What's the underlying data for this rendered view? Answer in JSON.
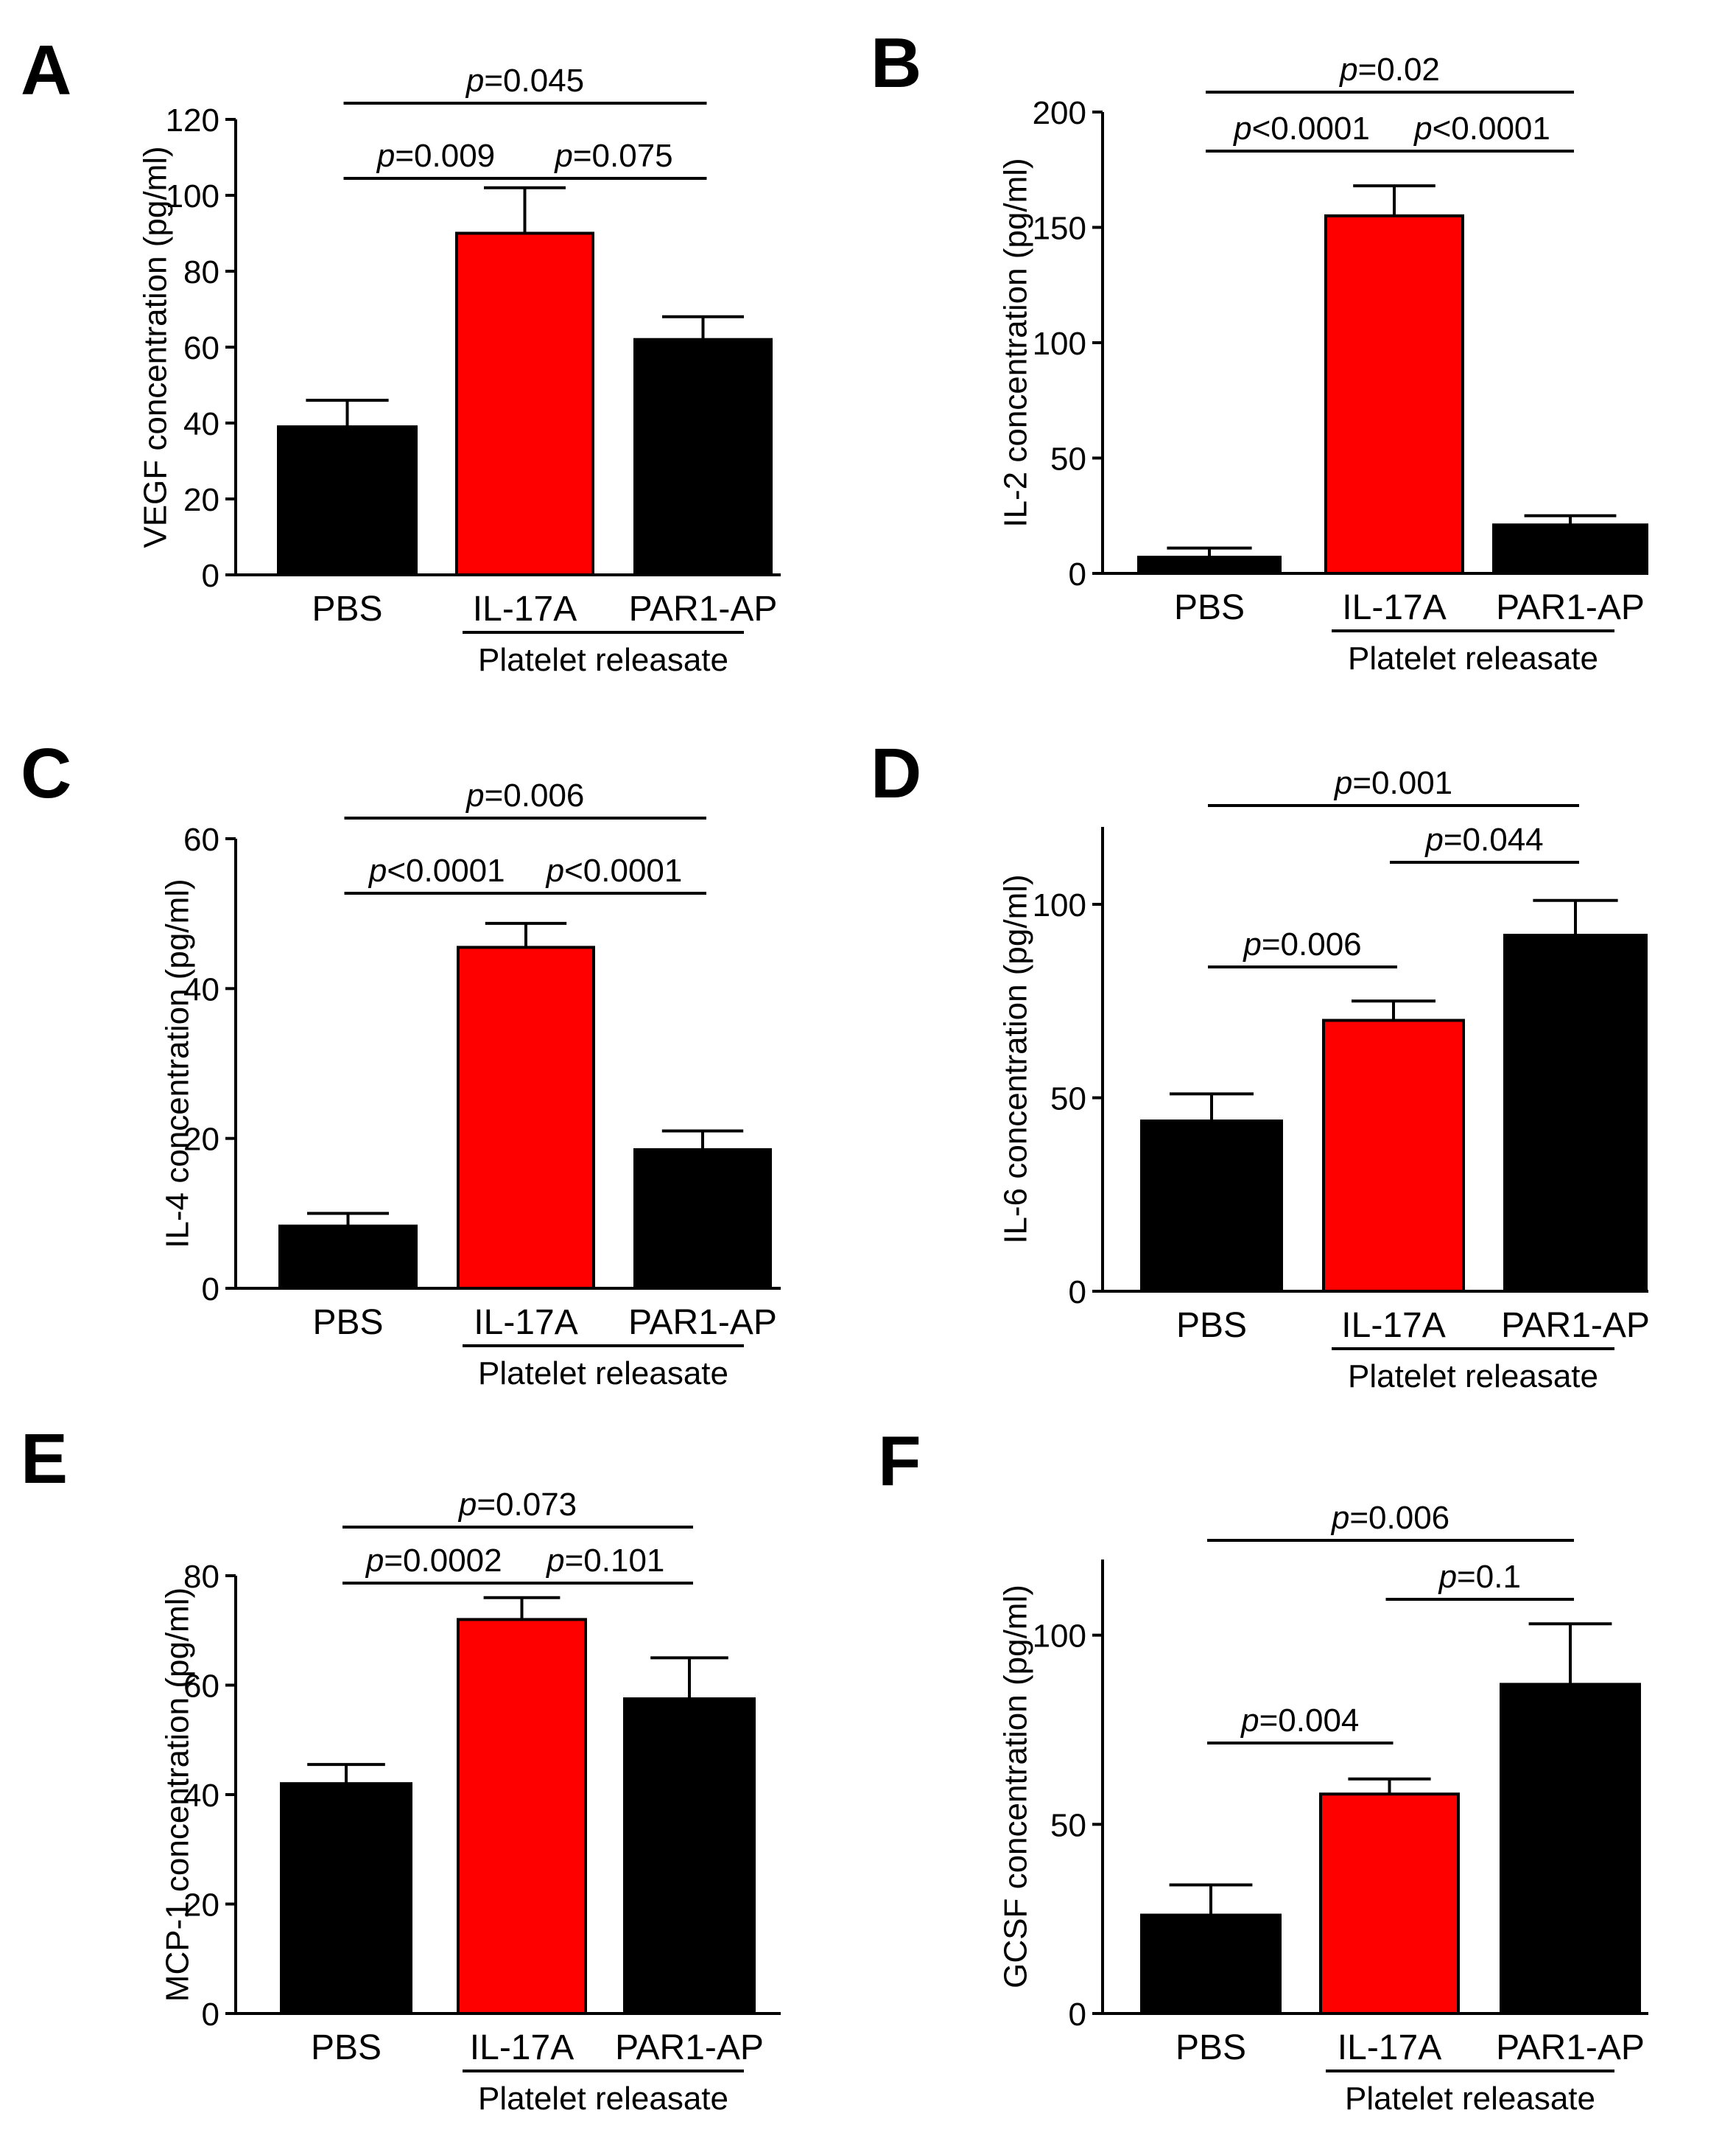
{
  "figure": {
    "group_label": "Platelet releasate"
  },
  "chart_data": [
    {
      "panel": "A",
      "type": "bar",
      "categories": [
        "PBS",
        "IL-17A",
        "PAR1-AP"
      ],
      "values": [
        39,
        90,
        62
      ],
      "errors": [
        7,
        12,
        6
      ],
      "colors": [
        "#000000",
        "#ff0000",
        "#000000"
      ],
      "ylabel": "VEGF concentration (pg/ml)",
      "ylim": [
        0,
        120
      ],
      "yticks": [
        0,
        20,
        40,
        60,
        80,
        100,
        120
      ],
      "group_label": "Platelet releasate",
      "comparisons": [
        {
          "from": 0,
          "to": 2,
          "italic": "p",
          "rest": "=0.045",
          "level": 2
        },
        {
          "from": 0,
          "to": 1,
          "italic": "p",
          "rest": "=0.009",
          "level": 1
        },
        {
          "from": 1,
          "to": 2,
          "italic": "p",
          "rest": "=0.075",
          "level": 1
        }
      ]
    },
    {
      "panel": "B",
      "type": "bar",
      "categories": [
        "PBS",
        "IL-17A",
        "PAR1-AP"
      ],
      "values": [
        7,
        155,
        21
      ],
      "errors": [
        4,
        13,
        4
      ],
      "colors": [
        "#000000",
        "#ff0000",
        "#000000"
      ],
      "ylabel": "IL-2 concentration (pg/ml)",
      "ylim": [
        0,
        200
      ],
      "yticks": [
        0,
        50,
        100,
        150,
        200
      ],
      "group_label": "Platelet releasate",
      "comparisons": [
        {
          "from": 0,
          "to": 2,
          "italic": "p",
          "rest": "=0.02",
          "level": 2
        },
        {
          "from": 0,
          "to": 1,
          "italic": "p",
          "rest": "<0.0001",
          "level": 1
        },
        {
          "from": 1,
          "to": 2,
          "italic": "p",
          "rest": "<0.0001",
          "level": 1
        }
      ]
    },
    {
      "panel": "C",
      "type": "bar",
      "categories": [
        "PBS",
        "IL-17A",
        "PAR1-AP"
      ],
      "values": [
        8.3,
        45.5,
        18.5
      ],
      "errors": [
        1.7,
        3.2,
        2.5
      ],
      "colors": [
        "#000000",
        "#ff0000",
        "#000000"
      ],
      "ylabel": "IL-4 concentration (pg/ml)",
      "ylim": [
        0,
        60
      ],
      "yticks": [
        0,
        20,
        40,
        60
      ],
      "group_label": "Platelet releasate",
      "comparisons": [
        {
          "from": 0,
          "to": 2,
          "italic": "p",
          "rest": "=0.006",
          "level": 2
        },
        {
          "from": 0,
          "to": 1,
          "italic": "p",
          "rest": "<0.0001",
          "level": 1
        },
        {
          "from": 1,
          "to": 2,
          "italic": "p",
          "rest": "<0.0001",
          "level": 1
        }
      ]
    },
    {
      "panel": "D",
      "type": "bar",
      "categories": [
        "PBS",
        "IL-17A",
        "PAR1-AP"
      ],
      "values": [
        44,
        70,
        92
      ],
      "errors": [
        7,
        5,
        9
      ],
      "colors": [
        "#000000",
        "#ff0000",
        "#000000"
      ],
      "ylabel": "IL-6 concentration (pg/ml)",
      "ylim": [
        0,
        120
      ],
      "yticks": [
        0,
        50,
        100
      ],
      "group_label": "Platelet releasate",
      "comparisons": [
        {
          "from": 0,
          "to": 2,
          "italic": "p",
          "rest": "=0.001",
          "level": 2
        },
        {
          "from": 1,
          "to": 2,
          "italic": "p",
          "rest": "=0.044",
          "level": 1
        },
        {
          "from": 0,
          "to": 1,
          "italic": "p",
          "rest": "=0.006",
          "level": 0
        }
      ]
    },
    {
      "panel": "E",
      "type": "bar",
      "categories": [
        "PBS",
        "IL-17A",
        "PAR1-AP"
      ],
      "values": [
        42,
        72,
        57.5
      ],
      "errors": [
        3.5,
        4,
        7.5
      ],
      "colors": [
        "#000000",
        "#ff0000",
        "#000000"
      ],
      "ylabel": "MCP-1 concentration (pg/ml)",
      "ylim": [
        0,
        80
      ],
      "yticks": [
        0,
        20,
        40,
        60,
        80
      ],
      "group_label": "Platelet releasate",
      "comparisons": [
        {
          "from": 0,
          "to": 2,
          "italic": "p",
          "rest": "=0.073",
          "level": 2
        },
        {
          "from": 0,
          "to": 1,
          "italic": "p",
          "rest": "=0.0002",
          "level": 1
        },
        {
          "from": 1,
          "to": 2,
          "italic": "p",
          "rest": "=0.101",
          "level": 1
        }
      ]
    },
    {
      "panel": "F",
      "type": "bar",
      "categories": [
        "PBS",
        "IL-17A",
        "PAR1-AP"
      ],
      "values": [
        26,
        58,
        87
      ],
      "errors": [
        8,
        4,
        16
      ],
      "colors": [
        "#000000",
        "#ff0000",
        "#000000"
      ],
      "ylabel": "GCSF concentration (pg/ml)",
      "ylim": [
        0,
        120
      ],
      "yticks": [
        0,
        50,
        100
      ],
      "group_label": "Platelet releasate",
      "comparisons": [
        {
          "from": 0,
          "to": 2,
          "italic": "p",
          "rest": "=0.006",
          "level": 2
        },
        {
          "from": 1,
          "to": 2,
          "italic": "p",
          "rest": "=0.1",
          "level": 1
        },
        {
          "from": 0,
          "to": 1,
          "italic": "p",
          "rest": "=0.004",
          "level": 0
        }
      ]
    }
  ]
}
